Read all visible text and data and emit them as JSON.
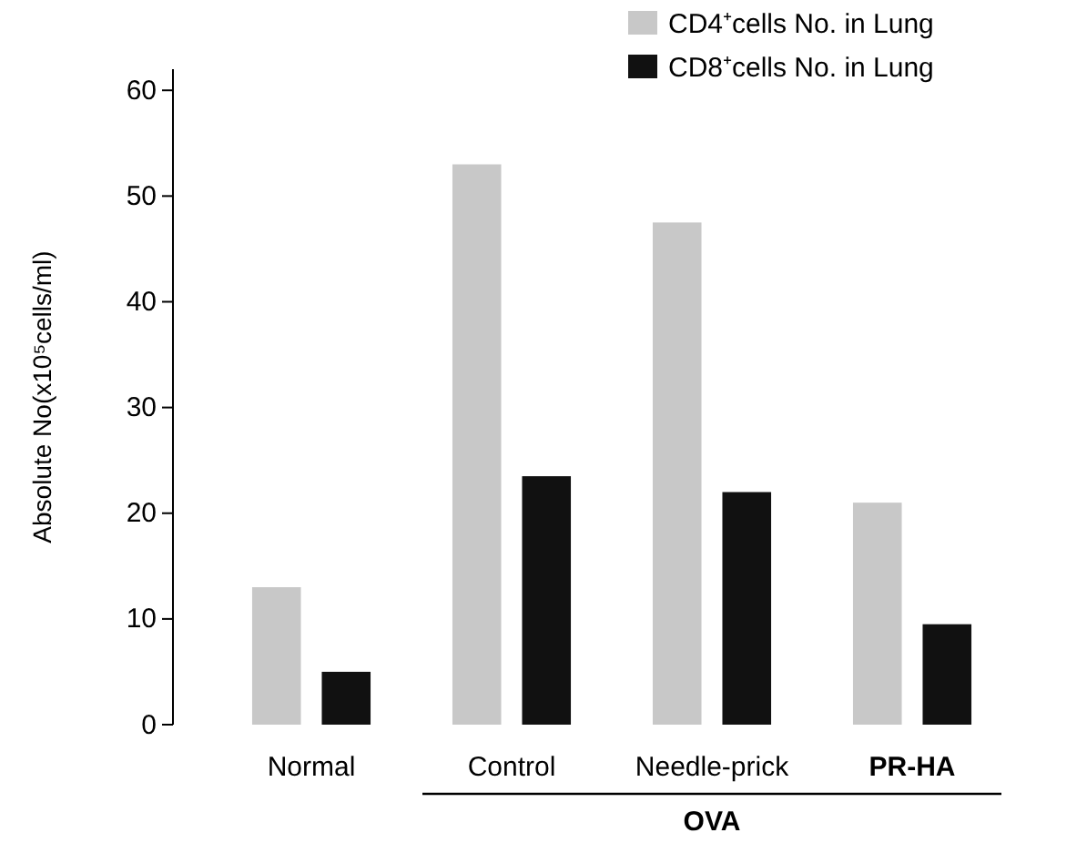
{
  "chart_data": {
    "type": "bar",
    "ylabel": "Absolute No(x10⁵cells/ml)",
    "categories": [
      "Normal",
      "Control",
      "Needle-prick",
      "PR-HA"
    ],
    "series": [
      {
        "name": "CD4⁺cells No. in Lung",
        "color": "#c8c8c8",
        "values": [
          13,
          53,
          47.5,
          21
        ]
      },
      {
        "name": "CD8⁺cells No. in Lung",
        "color": "#111111",
        "values": [
          5,
          23.5,
          22,
          9.5
        ]
      }
    ],
    "ylim": [
      0,
      62
    ],
    "yticks": [
      0,
      10,
      20,
      30,
      40,
      50,
      60
    ],
    "legend": "top right",
    "grid": false,
    "annotations": [
      "OVA"
    ]
  }
}
